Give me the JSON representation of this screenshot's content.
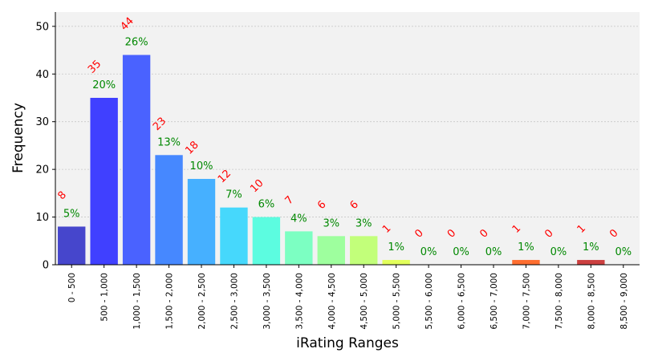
{
  "chart_data": {
    "type": "bar",
    "xlabel": "iRating Ranges",
    "ylabel": "Frequency",
    "ylim": [
      0,
      53
    ],
    "yticks": [
      0,
      10,
      20,
      30,
      40,
      50
    ],
    "grid": true,
    "categories": [
      "0 - 500",
      "500 - 1,000",
      "1,000 - 1,500",
      "1,500 - 2,000",
      "2,000 - 2,500",
      "2,500 - 3,000",
      "3,000 - 3,500",
      "3,500 - 4,000",
      "4,000 - 4,500",
      "4,500 - 5,000",
      "5,000 - 5,500",
      "5,500 - 6,000",
      "6,000 - 6,500",
      "6,500 - 7,000",
      "7,000 - 7,500",
      "7,500 - 8,000",
      "8,000 - 8,500",
      "8,500 - 9,000"
    ],
    "values": [
      8,
      35,
      44,
      23,
      18,
      12,
      10,
      7,
      6,
      6,
      1,
      0,
      0,
      0,
      1,
      0,
      1,
      0
    ],
    "count_labels": [
      "8",
      "35",
      "44",
      "23",
      "18",
      "12",
      "10",
      "7",
      "6",
      "6",
      "1",
      "0",
      "0",
      "0",
      "1",
      "0",
      "1",
      "0"
    ],
    "percent_labels": [
      "5%",
      "20%",
      "26%",
      "13%",
      "10%",
      "7%",
      "6%",
      "4%",
      "3%",
      "3%",
      "1%",
      "0%",
      "0%",
      "0%",
      "1%",
      "0%",
      "1%",
      "0%"
    ],
    "colors": [
      "#4646cc",
      "#4040ff",
      "#4a62ff",
      "#4688ff",
      "#46b0ff",
      "#46d8fc",
      "#5cfce0",
      "#7cffc2",
      "#9eff9e",
      "#c2ff7a",
      "#e2ff5a",
      "#ffe838",
      "#ffc022",
      "#ff9612",
      "#ff6e30",
      "#ff4a30",
      "#cc4040",
      "#a02c2c"
    ],
    "count_color": "#ff0000",
    "percent_color": "#008800",
    "plot_background": "#f2f2f2"
  }
}
